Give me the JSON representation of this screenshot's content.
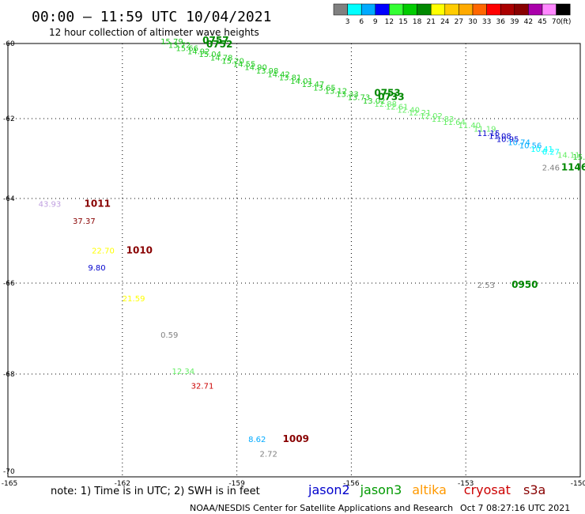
{
  "header": {
    "title": "00:00 – 11:59 UTC 10/04/2021",
    "subtitle": "12 hour collection of altimeter wave heights"
  },
  "colorbar": {
    "labels": [
      "3",
      "6",
      "9",
      "12",
      "15",
      "18",
      "21",
      "24",
      "27",
      "30",
      "33",
      "36",
      "39",
      "42",
      "45",
      "70"
    ],
    "unit": "(ft)",
    "colors": [
      "#808080",
      "#00ffff",
      "#00aaff",
      "#0000ff",
      "#33ff33",
      "#00cc00",
      "#008800",
      "#ffff00",
      "#ffcc00",
      "#ffaa00",
      "#ff6600",
      "#ff0000",
      "#aa0000",
      "#880000",
      "#aa00aa",
      "#ff88ff",
      "#000000"
    ]
  },
  "footer": {
    "note": "note: 1) Time is in UTC; 2) SWH is in feet",
    "legend": [
      {
        "name": "jason2",
        "color": "#0000cc"
      },
      {
        "name": "jason3",
        "color": "#009900"
      },
      {
        "name": "altika",
        "color": "#ff9900"
      },
      {
        "name": "cryosat",
        "color": "#cc0000"
      },
      {
        "name": "s3a",
        "color": "#880000"
      }
    ],
    "credit": "NOAA/NESDIS Center for Satellite Applications and Research",
    "timestamp": "Oct  7 08:27:16 UTC 2021"
  },
  "chart_data": {
    "type": "scatter",
    "xlim": [
      -165,
      -150
    ],
    "ylim": [
      -70,
      -60
    ],
    "xtick_labels": [
      "-165",
      "-162",
      "-159",
      "-156",
      "-153",
      "-150"
    ],
    "xticks": [
      -165,
      -162,
      -159,
      -156,
      -153,
      -150
    ],
    "ytick_labels": [
      "-60",
      "-62",
      "-64",
      "-66",
      "-68",
      "-70"
    ],
    "yticks": [
      -60,
      -62,
      -64,
      -66,
      -68,
      -70
    ],
    "grid": true,
    "points": [
      {
        "x": -164.2,
        "y": -64.2,
        "text": "43.93",
        "color": "#c0a0e0"
      },
      {
        "x": -163.3,
        "y": -64.6,
        "text": "37.37",
        "color": "#880000"
      },
      {
        "x": -162.8,
        "y": -65.3,
        "text": "22.70",
        "color": "#ffff00"
      },
      {
        "x": -162.9,
        "y": -65.7,
        "text": "9.80",
        "color": "#0000cc"
      },
      {
        "x": -162.0,
        "y": -66.4,
        "text": "21.59",
        "color": "#ffff00"
      },
      {
        "x": -161.0,
        "y": -67.2,
        "text": "0.59",
        "color": "#808080"
      },
      {
        "x": -160.7,
        "y": -68.0,
        "text": "12.34",
        "color": "#66ee66"
      },
      {
        "x": -160.2,
        "y": -68.3,
        "text": "32.71",
        "color": "#cc0000"
      },
      {
        "x": -158.7,
        "y": -69.4,
        "text": "8.62",
        "color": "#00aaff"
      },
      {
        "x": -158.4,
        "y": -69.7,
        "text": "2.72",
        "color": "#808080"
      },
      {
        "x": -152.7,
        "y": -66.1,
        "text": "2.53",
        "color": "#808080"
      },
      {
        "x": -151.0,
        "y": -63.3,
        "text": "2.46",
        "color": "#808080"
      },
      {
        "x": -161.0,
        "y": -60.02,
        "text": "15.79",
        "color": "#22cc22"
      },
      {
        "x": -160.8,
        "y": -60.12,
        "text": "13.72",
        "color": "#22cc22"
      },
      {
        "x": -160.6,
        "y": -60.2,
        "text": "15.66",
        "color": "#22cc22"
      },
      {
        "x": -160.3,
        "y": -60.28,
        "text": "14.92",
        "color": "#22cc22"
      },
      {
        "x": -160.0,
        "y": -60.36,
        "text": "15.04",
        "color": "#22cc22"
      },
      {
        "x": -159.7,
        "y": -60.45,
        "text": "14.78",
        "color": "#22cc22"
      },
      {
        "x": -159.4,
        "y": -60.54,
        "text": "15.20",
        "color": "#22cc22"
      },
      {
        "x": -159.1,
        "y": -60.62,
        "text": "14.55",
        "color": "#22cc22"
      },
      {
        "x": -158.8,
        "y": -60.71,
        "text": "14.90",
        "color": "#22cc22"
      },
      {
        "x": -158.5,
        "y": -60.8,
        "text": "13.98",
        "color": "#22cc22"
      },
      {
        "x": -158.2,
        "y": -60.89,
        "text": "14.42",
        "color": "#22cc22"
      },
      {
        "x": -157.9,
        "y": -60.98,
        "text": "13.81",
        "color": "#22cc22"
      },
      {
        "x": -157.6,
        "y": -61.07,
        "text": "14.01",
        "color": "#22cc22"
      },
      {
        "x": -157.3,
        "y": -61.16,
        "text": "13.47",
        "color": "#22cc22"
      },
      {
        "x": -157.0,
        "y": -61.25,
        "text": "13.65",
        "color": "#22cc22"
      },
      {
        "x": -156.7,
        "y": -61.34,
        "text": "13.12",
        "color": "#22cc22"
      },
      {
        "x": -156.4,
        "y": -61.42,
        "text": "13.33",
        "color": "#22cc22"
      },
      {
        "x": -156.1,
        "y": -61.5,
        "text": "13.73",
        "color": "#22cc22"
      },
      {
        "x": -155.7,
        "y": -61.6,
        "text": "13.02",
        "color": "#22cc22"
      },
      {
        "x": -155.4,
        "y": -61.68,
        "text": "12.88",
        "color": "#66ee66"
      },
      {
        "x": -155.1,
        "y": -61.76,
        "text": "12.61",
        "color": "#66ee66"
      },
      {
        "x": -154.8,
        "y": -61.84,
        "text": "12.40",
        "color": "#66ee66"
      },
      {
        "x": -154.5,
        "y": -61.92,
        "text": "12.21",
        "color": "#66ee66"
      },
      {
        "x": -154.2,
        "y": -62.0,
        "text": "12.02",
        "color": "#66ee66"
      },
      {
        "x": -153.9,
        "y": -62.08,
        "text": "11.83",
        "color": "#66ee66"
      },
      {
        "x": -153.6,
        "y": -62.16,
        "text": "11.64",
        "color": "#66ee66"
      },
      {
        "x": -153.2,
        "y": -62.24,
        "text": "11.40",
        "color": "#66ee66"
      },
      {
        "x": -152.8,
        "y": -62.33,
        "text": "11.19",
        "color": "#66ee66"
      },
      {
        "x": -152.7,
        "y": -62.44,
        "text": "11.15",
        "color": "#0000cc"
      },
      {
        "x": -152.4,
        "y": -62.5,
        "text": "11.08",
        "color": "#0000cc"
      },
      {
        "x": -152.2,
        "y": -62.58,
        "text": "10.95",
        "color": "#0000cc"
      },
      {
        "x": -151.9,
        "y": -62.66,
        "text": "10.74",
        "color": "#00aaff"
      },
      {
        "x": -151.6,
        "y": -62.74,
        "text": "10.56",
        "color": "#00aaff"
      },
      {
        "x": -151.3,
        "y": -62.83,
        "text": "10.41",
        "color": "#00ffff"
      },
      {
        "x": -151.0,
        "y": -62.9,
        "text": "6.27",
        "color": "#00ffff"
      },
      {
        "x": -150.6,
        "y": -62.98,
        "text": "14.11",
        "color": "#66ee66"
      },
      {
        "x": -150.2,
        "y": -63.03,
        "text": "15.39",
        "color": "#22cc22"
      }
    ],
    "time_labels": [
      {
        "x": -159.9,
        "y": -60.0,
        "text": "0757",
        "color": "#008800"
      },
      {
        "x": -159.8,
        "y": -60.1,
        "text": "0752",
        "color": "#008800"
      },
      {
        "x": -155.4,
        "y": -61.4,
        "text": "0753",
        "color": "#008800"
      },
      {
        "x": -155.3,
        "y": -61.5,
        "text": "0733",
        "color": "#008800"
      },
      {
        "x": -150.5,
        "y": -63.3,
        "text": "1146",
        "color": "#008800"
      },
      {
        "x": -151.8,
        "y": -66.1,
        "text": "0950",
        "color": "#008800"
      },
      {
        "x": -163.0,
        "y": -64.2,
        "text": "1011",
        "color": "#880000"
      },
      {
        "x": -161.9,
        "y": -65.3,
        "text": "1010",
        "color": "#880000"
      },
      {
        "x": -157.8,
        "y": -69.4,
        "text": "1009",
        "color": "#880000"
      },
      {
        "x": -159.4,
        "y": -68.3,
        "text": "",
        "color": "#880000"
      }
    ]
  }
}
